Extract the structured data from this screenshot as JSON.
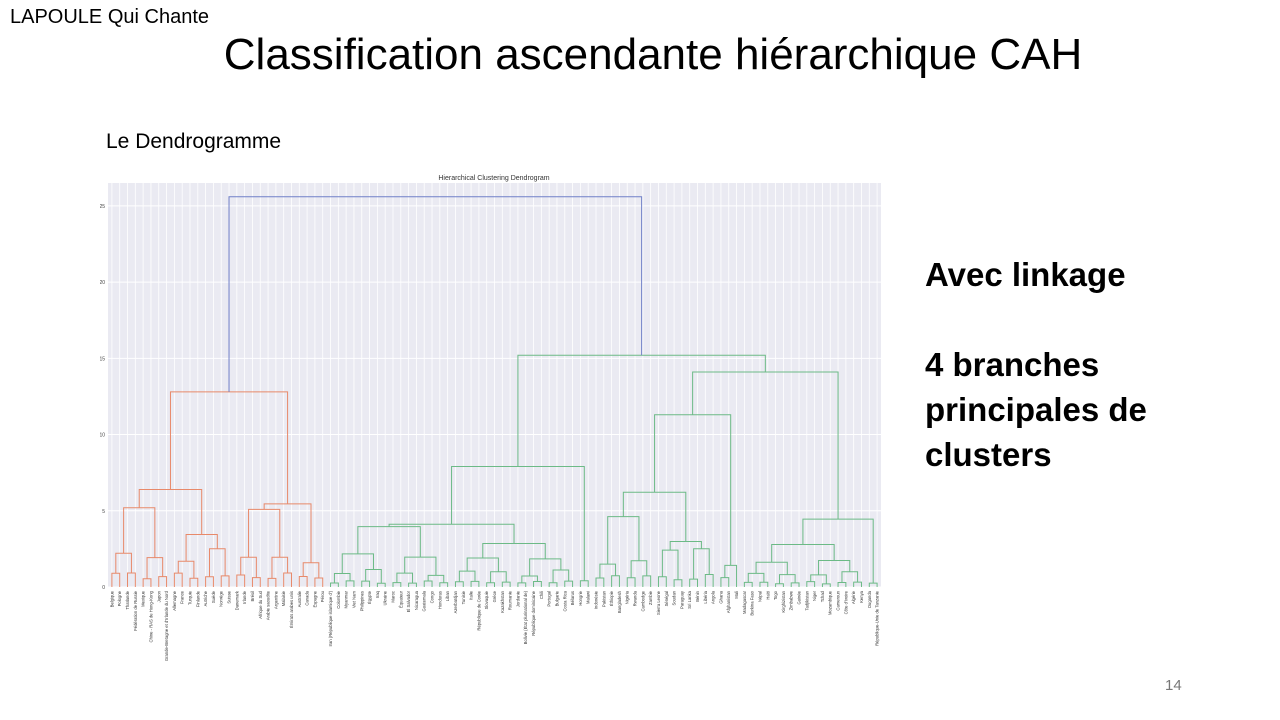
{
  "slide": {
    "author": "LAPOULE Qui Chante",
    "title": "Classification ascendante hiérarchique CAH",
    "subtitle": "Le Dendrogramme",
    "side_lines": [
      "Avec linkage",
      "",
      "4 branches",
      "principales de",
      "clusters"
    ],
    "page_number": "14"
  },
  "chart_data": {
    "type": "dendrogram",
    "title": "Hierarchical Clustering Dendrogram",
    "ylim": [
      0,
      26.5
    ],
    "yticks": [
      0,
      5,
      10,
      15,
      20,
      25
    ],
    "grid": true,
    "colors": {
      "cluster1": "#e8896a",
      "cluster2": "#6cba86",
      "root": "#6f7fc7",
      "background": "#eaeaf2"
    },
    "clusters": [
      {
        "color": "cluster1",
        "leaves": [
          "Belgique",
          "Pologne",
          "Thaïlande",
          "Fédération de Russie",
          "Mexique",
          "Chine - RAS de Hong-Kong",
          "Japon",
          "Grande-Bretagne et d'Irlande du Nord",
          "Allemagne",
          "France",
          "Turquie",
          "Finlande",
          "Autriche",
          "Suède",
          "Norvège",
          "Suisse",
          "Danemark",
          "Irlande",
          "Brésil",
          "Afrique du Sud",
          "Arabie saoudite",
          "Argentine",
          "Malaisie",
          "Émirats arabes unis",
          "Australie",
          "Canada",
          "Espagne",
          "Pérou"
        ]
      },
      {
        "color": "cluster2",
        "leaves": [
          "Iran (République islamique d')",
          "Colombie",
          "Myanmar",
          "Viet Nam",
          "Philippines",
          "Égypte",
          "Iraq",
          "Ukraine",
          "Maroc",
          "Équateur",
          "El Salvador",
          "Nicaragua",
          "Guatemala",
          "Congo",
          "Honduras",
          "Liban",
          "Azerbaïdjan",
          "Tunisie",
          "Italie",
          "République de Corée",
          "Slovaquie",
          "Grèce",
          "Kazakhstan",
          "Roumanie",
          "Jordanie",
          "Bolivie (État plurinational de)",
          "République dominicaine",
          "Chili",
          "Portugal",
          "Bulgarie",
          "Costa Rica",
          "Bélarus",
          "Hongrie",
          "Malawi"
        ]
      },
      {
        "color": "cluster2",
        "leaves": [
          "Indonésie",
          "Pakistan",
          "Éthiopie",
          "Bangladesh",
          "Nigéria",
          "Rwanda",
          "Cambodge",
          "Zambie",
          "Sierra Leone",
          "Sénégal",
          "Soudan",
          "Paraguay",
          "Sri Lanka",
          "Bénin",
          "Libéria",
          "Angola",
          "Ghana",
          "Afghanistan",
          "Mali"
        ]
      },
      {
        "color": "cluster2",
        "leaves": [
          "Madagascar",
          "Burkina Faso",
          "Népal",
          "Haïti",
          "Togo",
          "Kirghizistan",
          "Zimbabwe",
          "Guinée",
          "Tadjikistan",
          "Niger",
          "Tchad",
          "Mozambique",
          "Cameroun",
          "Côte d'Ivoire",
          "Algérie",
          "Kenya",
          "Ouganda",
          "République-Unie de Tanzanie"
        ]
      }
    ],
    "top_links": [
      {
        "between": [
          "cluster_1",
          "clusters_2_3_4"
        ],
        "height": 25.6,
        "color": "root"
      },
      {
        "between": [
          "cluster_2",
          "clusters_3_4"
        ],
        "height": 15.2,
        "color": "cluster2"
      },
      {
        "between": [
          "cluster_3",
          "cluster_4"
        ],
        "height": 14.1,
        "color": "cluster2"
      },
      {
        "root_of": "cluster_1",
        "height": 12.8,
        "color": "cluster1"
      },
      {
        "root_of": "cluster_2",
        "height": 7.9,
        "color": "cluster2"
      }
    ]
  }
}
